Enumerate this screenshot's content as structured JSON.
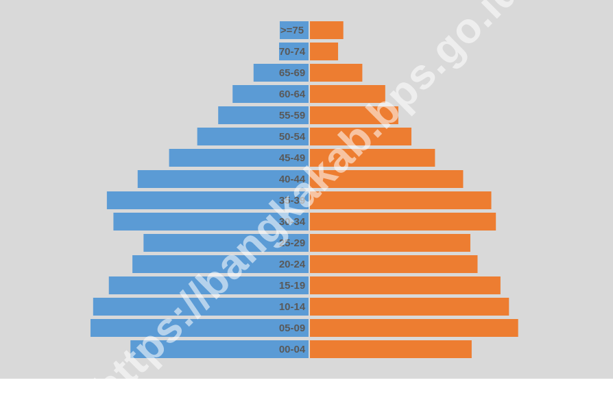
{
  "chart_data": {
    "type": "bar",
    "orientation": "horizontal",
    "categories": [
      "00-04",
      "05-09",
      "10-14",
      "15-19",
      "20-24",
      "25-29",
      "30-34",
      "35-39",
      "40-44",
      "45-49",
      "50-54",
      "55-59",
      "60-64",
      "65-69",
      "70-74",
      ">=75"
    ],
    "series": [
      {
        "values": [
          272,
          333,
          329,
          305,
          269,
          252,
          298,
          308,
          261,
          213,
          170,
          138,
          116,
          84,
          45,
          44
        ]
      },
      {
        "values": [
          247,
          318,
          304,
          291,
          256,
          245,
          284,
          277,
          234,
          191,
          155,
          135,
          115,
          80,
          43,
          51
        ]
      }
    ],
    "xlim": [
      0,
      350
    ],
    "grid": false,
    "legend": "none",
    "colors": {
      "left": "#5b9bd5",
      "right": "#ed7d31",
      "background": "#d9d9d9",
      "label": "#595959"
    }
  },
  "watermark": "https://bangkakab.bps.go.id"
}
